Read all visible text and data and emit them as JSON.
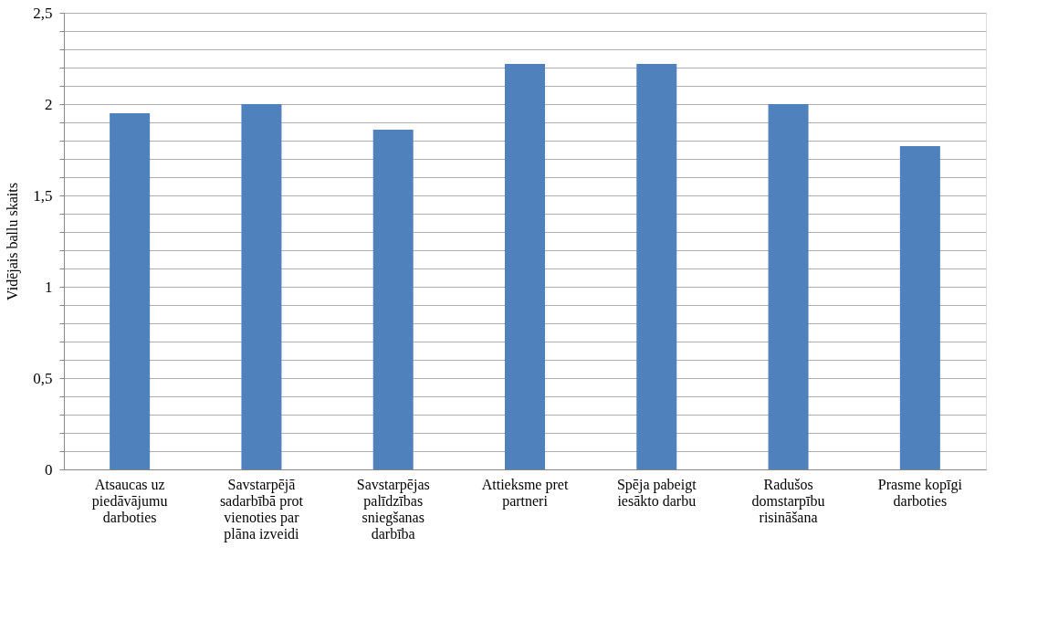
{
  "chart_data": {
    "type": "bar",
    "ylabel": "Vidējais ballu skaits",
    "categories": [
      "Atsaucas uz piedāvājumu darboties",
      "Savstarpējā sadarbībā prot vienoties par plāna izveidi",
      "Savstarpējas palīdzības sniegšanas darbība",
      "Attieksme pret partneri",
      "Spēja pabeigt iesākto darbu",
      "Radušos domstarpību risināšana",
      "Prasme kopīgi darboties"
    ],
    "values": [
      1.95,
      2.0,
      1.86,
      2.22,
      2.22,
      2.0,
      1.77
    ],
    "color": "#4f81bd",
    "ylim": [
      0,
      2.5
    ],
    "yticks": [
      0,
      {
        "value": 0.1,
        "label": null
      },
      {
        "value": 0.2,
        "label": null
      },
      {
        "value": 0.3,
        "label": null
      },
      {
        "value": 0.4,
        "label": null
      },
      {
        "value": 0.5,
        "label": "0,5"
      },
      {
        "value": 0.6,
        "label": null
      },
      {
        "value": 0.7,
        "label": null
      },
      {
        "value": 0.8,
        "label": null
      },
      {
        "value": 0.9,
        "label": null
      },
      1,
      {
        "value": 1.1,
        "label": null
      },
      {
        "value": 1.2,
        "label": null
      },
      {
        "value": 1.3,
        "label": null
      },
      {
        "value": 1.4,
        "label": null
      },
      {
        "value": 1.5,
        "label": "1,5"
      },
      {
        "value": 1.6,
        "label": null
      },
      {
        "value": 1.7,
        "label": null
      },
      {
        "value": 1.8,
        "label": null
      },
      {
        "value": 1.9,
        "label": null
      },
      2,
      {
        "value": 2.1,
        "label": null
      },
      {
        "value": 2.2,
        "label": null
      },
      {
        "value": 2.3,
        "label": null
      },
      {
        "value": 2.4,
        "label": null
      },
      {
        "value": 2.5,
        "label": "2,5"
      }
    ],
    "grid": true
  }
}
